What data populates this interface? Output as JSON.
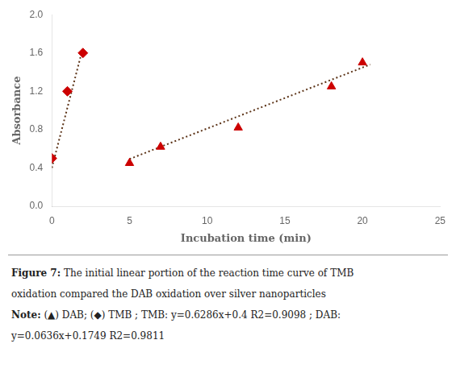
{
  "chart_data": {
    "type": "scatter",
    "xlabel": "Incubation time (min)",
    "ylabel": "Absorbance",
    "xlim": [
      0,
      25
    ],
    "ylim": [
      0.0,
      2.0
    ],
    "xticks": [
      0,
      5,
      10,
      15,
      20,
      25
    ],
    "yticks": [
      {
        "value": 0.0,
        "label": "0.0"
      },
      0.4,
      0.8,
      1.2,
      1.6,
      {
        "value": 2.0,
        "label": "2.0"
      }
    ],
    "grid": false,
    "series": [
      {
        "type": "line",
        "line_style": "dotted",
        "color": "#5C3317",
        "x": [
          0,
          2.0
        ],
        "values": [
          0.4,
          1.657
        ]
      },
      {
        "type": "line",
        "line_style": "dotted",
        "color": "#5C3317",
        "x": [
          5.0,
          20.5
        ],
        "values": [
          0.4929,
          1.4797
        ]
      },
      {
        "type": "scatter",
        "marker": "diamond",
        "color": "#CC0000",
        "x": [
          0,
          1,
          2
        ],
        "values": [
          0.5,
          1.2,
          1.6
        ]
      },
      {
        "type": "scatter",
        "marker": "triangle",
        "color": "#CC0000",
        "x": [
          5,
          7,
          12,
          18,
          20
        ],
        "values": [
          0.45,
          0.62,
          0.82,
          1.25,
          1.5
        ]
      }
    ],
    "annotations": [
      [
        "Figure 7:",
        " The initial linear portion of the reaction time curve of TMB"
      ],
      [
        "oxidation compared the DAB oxidation over silver nanoparticles"
      ],
      [
        "Note:",
        " (▲) DAB; (◆) TMB ; TMB: y=0.6286x+0.4 R2=0.9098 ; DAB:"
      ],
      [
        "y=0.0636x+0.1749 R2=0.9811"
      ]
    ]
  }
}
